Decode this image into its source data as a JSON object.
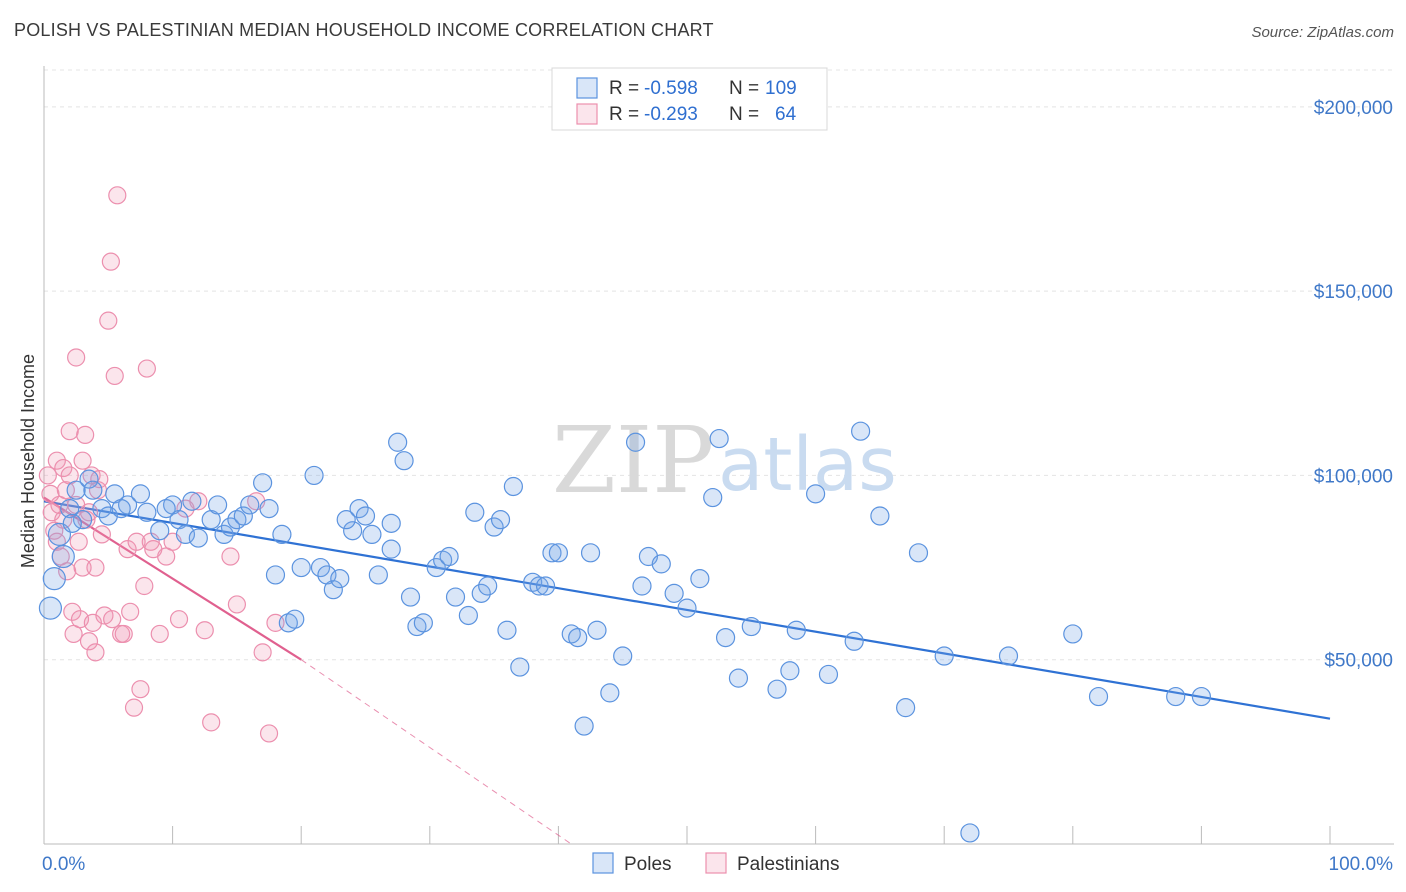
{
  "title": "POLISH VS PALESTINIAN MEDIAN HOUSEHOLD INCOME CORRELATION CHART",
  "source": "Source: ZipAtlas.com",
  "watermark": {
    "part1": "ZIP",
    "part2": "atlas"
  },
  "colors": {
    "poles": "#5b93df",
    "poles_fill": "rgba(120,165,230,0.28)",
    "poles_line": "#2f72d4",
    "palestinians": "#ec8fae",
    "palestinians_fill": "rgba(240,150,180,0.25)",
    "palestinians_line": "#e0608f",
    "grid": "#e4e4e4",
    "axis_text": "#3f78c8"
  },
  "legend": {
    "rows": [
      {
        "r_label": "R = ",
        "r_value": "-0.598",
        "n_label": "N = ",
        "n_value": "109",
        "series": "poles"
      },
      {
        "r_label": "R = ",
        "r_value": "-0.293",
        "n_label": "N = ",
        "n_value": "64",
        "series": "palestinians"
      }
    ]
  },
  "bottom_legend": [
    "Poles",
    "Palestinians"
  ],
  "chart_data": {
    "type": "scatter",
    "title": "POLISH VS PALESTINIAN MEDIAN HOUSEHOLD INCOME CORRELATION CHART",
    "xlabel": "",
    "ylabel": "Median Household Income",
    "xlim": [
      0,
      100
    ],
    "ylim": [
      0,
      210000
    ],
    "x_tick_labels": [
      "0.0%",
      "100.0%"
    ],
    "y_ticks": [
      50000,
      100000,
      150000,
      200000
    ],
    "y_tick_labels": [
      "$50,000",
      "$100,000",
      "$150,000",
      "$200,000"
    ],
    "grid": true,
    "series": [
      {
        "name": "Poles",
        "x": [
          0.5,
          0.8,
          1.2,
          1.5,
          2.0,
          2.5,
          3.0,
          3.5,
          4.5,
          5.0,
          5.5,
          6.5,
          7.5,
          8.0,
          9.0,
          10.0,
          10.5,
          11.0,
          11.5,
          12.0,
          13.0,
          14.0,
          14.5,
          15.0,
          15.5,
          16.0,
          17.0,
          17.5,
          18.0,
          19.0,
          19.5,
          20.0,
          21.0,
          21.5,
          22.0,
          22.5,
          23.0,
          24.0,
          24.5,
          25.0,
          25.5,
          26.0,
          27.0,
          27.5,
          28.0,
          28.5,
          29.0,
          29.5,
          30.5,
          31.0,
          31.5,
          32.0,
          33.0,
          34.0,
          34.5,
          35.0,
          35.5,
          36.0,
          36.5,
          37.0,
          38.0,
          38.5,
          39.0,
          39.5,
          40.0,
          41.0,
          41.5,
          42.0,
          43.0,
          44.0,
          45.0,
          46.0,
          47.0,
          48.0,
          49.0,
          50.0,
          51.0,
          52.0,
          53.0,
          54.0,
          55.0,
          57.0,
          58.0,
          60.0,
          61.0,
          63.0,
          65.0,
          67.0,
          68.0,
          70.0,
          72.0,
          75.0,
          80.0,
          82.0,
          88.0,
          90.0,
          2.2,
          3.8,
          6.0,
          9.5,
          13.5,
          18.5,
          23.5,
          27.0,
          33.5,
          42.5,
          46.5,
          52.5,
          58.5,
          63.5
        ],
        "y": [
          64000,
          72000,
          84000,
          78000,
          91000,
          96000,
          88000,
          99000,
          91000,
          89000,
          95000,
          92000,
          95000,
          90000,
          85000,
          92000,
          88000,
          84000,
          93000,
          83000,
          88000,
          84000,
          86000,
          88000,
          89000,
          92000,
          98000,
          91000,
          73000,
          60000,
          61000,
          75000,
          100000,
          75000,
          73000,
          69000,
          72000,
          85000,
          91000,
          89000,
          84000,
          73000,
          80000,
          109000,
          104000,
          67000,
          59000,
          60000,
          75000,
          77000,
          78000,
          67000,
          62000,
          68000,
          70000,
          86000,
          88000,
          58000,
          97000,
          48000,
          71000,
          70000,
          70000,
          79000,
          79000,
          57000,
          56000,
          32000,
          58000,
          41000,
          51000,
          109000,
          78000,
          76000,
          68000,
          64000,
          72000,
          94000,
          56000,
          45000,
          59000,
          42000,
          47000,
          95000,
          46000,
          55000,
          89000,
          37000,
          79000,
          51000,
          3000,
          51000,
          57000,
          40000,
          40000,
          40000,
          87000,
          96000,
          91000,
          91000,
          92000,
          84000,
          88000,
          87000,
          90000,
          79000,
          70000,
          110000,
          58000,
          112000
        ],
        "r": -0.598,
        "n": 109,
        "trend": {
          "x": [
            0,
            100
          ],
          "y": [
            93000,
            34000
          ]
        }
      },
      {
        "name": "Palestinians",
        "x": [
          0.3,
          0.5,
          0.6,
          0.8,
          1.0,
          1.0,
          1.2,
          1.3,
          1.5,
          1.5,
          1.7,
          1.8,
          2.0,
          2.0,
          2.2,
          2.3,
          2.5,
          2.5,
          2.7,
          2.8,
          3.0,
          3.0,
          3.2,
          3.3,
          3.5,
          3.5,
          3.7,
          3.8,
          4.0,
          4.0,
          4.2,
          4.3,
          4.5,
          4.7,
          5.0,
          5.2,
          5.3,
          5.5,
          5.7,
          6.0,
          6.2,
          6.5,
          6.7,
          7.0,
          7.2,
          7.5,
          7.8,
          8.0,
          8.3,
          8.5,
          9.0,
          9.5,
          10.0,
          10.5,
          11.0,
          12.0,
          12.5,
          13.0,
          14.5,
          15.0,
          16.5,
          17.0,
          17.5,
          18.0
        ],
        "y": [
          100000,
          95000,
          90000,
          85000,
          104000,
          82000,
          92000,
          78000,
          102000,
          88000,
          96000,
          74000,
          112000,
          100000,
          63000,
          57000,
          132000,
          92000,
          82000,
          61000,
          104000,
          75000,
          111000,
          88000,
          55000,
          90000,
          100000,
          60000,
          75000,
          52000,
          96000,
          99000,
          84000,
          62000,
          142000,
          158000,
          61000,
          127000,
          176000,
          57000,
          57000,
          80000,
          63000,
          37000,
          82000,
          42000,
          70000,
          129000,
          82000,
          80000,
          57000,
          78000,
          82000,
          61000,
          91000,
          93000,
          58000,
          33000,
          78000,
          65000,
          93000,
          52000,
          30000,
          60000
        ],
        "r": -0.293,
        "n": 64,
        "trend": {
          "x": [
            0,
            20
          ],
          "y": [
            94000,
            50000
          ]
        },
        "trend_extension": {
          "x": [
            20,
            41
          ],
          "y": [
            50000,
            0
          ]
        }
      }
    ]
  }
}
